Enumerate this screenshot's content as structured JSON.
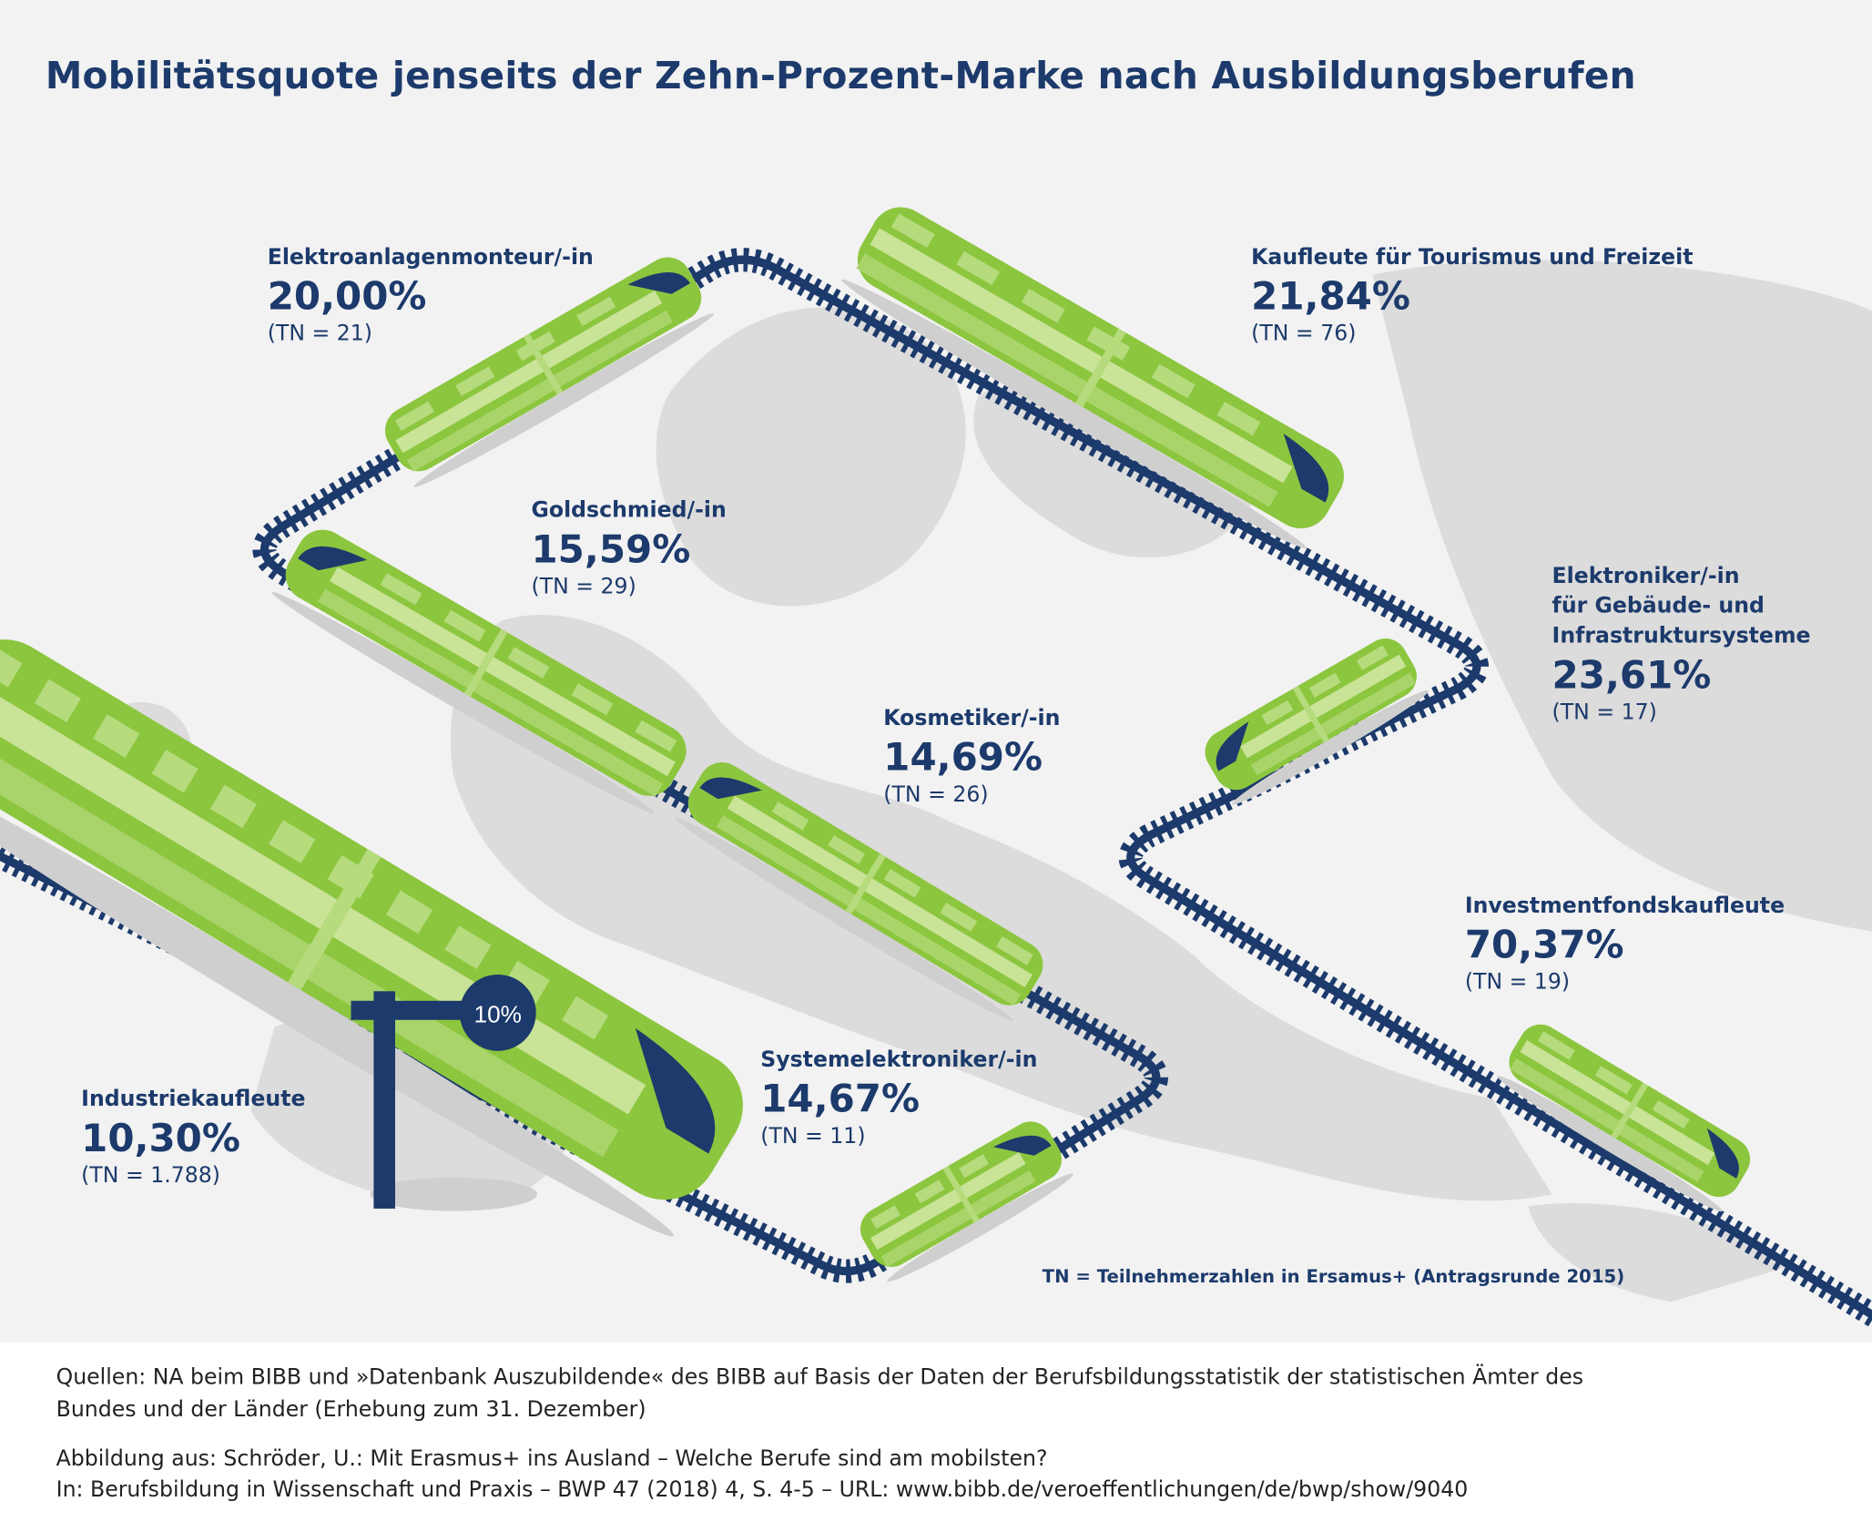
{
  "title": "Mobilitätsquote jenseits der Zehn-Prozent-Marke nach Ausbildungsberufen",
  "colors": {
    "navy": "#1c3a6b",
    "train_green": "#8cc63f",
    "train_light": "#c9e397",
    "background": "#f2f2f2",
    "map_gray": "#dcdcdc"
  },
  "signal": {
    "label": "10%",
    "icon": "railway-signal-icon"
  },
  "professions": [
    {
      "name": "Elektroanlagenmonteur/-in",
      "rate": "20,00%",
      "tn": "(TN = 21)"
    },
    {
      "name": "Kaufleute für Tourismus und Freizeit",
      "rate": "21,84%",
      "tn": "(TN = 76)"
    },
    {
      "name": "Goldschmied/-in",
      "rate": "15,59%",
      "tn": "(TN = 29)"
    },
    {
      "name_lines": [
        "Elektroniker/-in",
        "für Gebäude- und",
        "Infrastruktursysteme"
      ],
      "rate": "23,61%",
      "tn": "(TN = 17)"
    },
    {
      "name": "Kosmetiker/-in",
      "rate": "14,69%",
      "tn": "(TN = 26)"
    },
    {
      "name": "Investmentfondskaufleute",
      "rate": "70,37%",
      "tn": "(TN = 19)"
    },
    {
      "name": "Systemelektroniker/-in",
      "rate": "14,67%",
      "tn": "(TN = 11)"
    },
    {
      "name": "Industriekaufleute",
      "rate": "10,30%",
      "tn": "(TN = 1.788)"
    }
  ],
  "note": "TN = Teilnehmerzahlen in Ersamus+ (Antragsrunde 2015)",
  "footer": {
    "sources_line1": "Quellen: NA beim BIBB und »Datenbank Auszubildende« des BIBB auf Basis der Daten der Berufsbildungsstatistik der statistischen Ämter des",
    "sources_line2": "Bundes und der Länder (Erhebung zum 31. Dezember)",
    "citation_line1": "Abbildung aus: Schröder, U.: Mit Erasmus+ ins Ausland – Welche Berufe sind am mobilsten?",
    "citation_line2": "In: Berufsbildung in Wissenschaft und Praxis – BWP 47 (2018) 4, S. 4-5 – URL: www.bibb.de/veroeffentlichungen/de/bwp/show/9040"
  }
}
